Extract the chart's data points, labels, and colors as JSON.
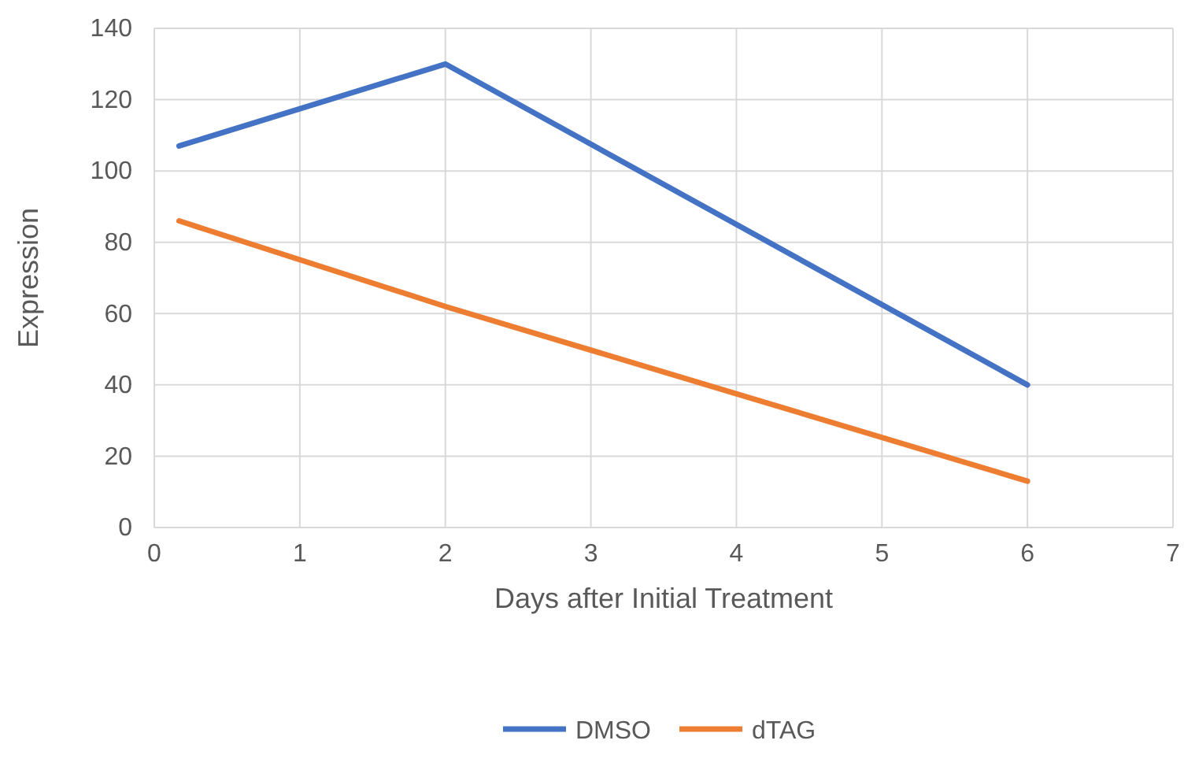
{
  "chart_data": {
    "type": "line",
    "xlabel": "Days after Initial Treatment",
    "ylabel": "Expression",
    "x": [
      0.17,
      2,
      6
    ],
    "series": [
      {
        "name": "DMSO",
        "color": "#4472c4",
        "values": [
          107,
          130,
          40
        ]
      },
      {
        "name": "dTAG",
        "color": "#ed7d31",
        "values": [
          86,
          62,
          13
        ]
      }
    ],
    "xlim": [
      0,
      7
    ],
    "xticks": [
      0,
      1,
      2,
      3,
      4,
      5,
      6,
      7
    ],
    "ylim": [
      0,
      140
    ],
    "yticks": [
      0,
      20,
      40,
      60,
      80,
      100,
      120,
      140
    ],
    "grid": true,
    "legend": "bottom",
    "marker": "none",
    "line_style": "solid"
  }
}
